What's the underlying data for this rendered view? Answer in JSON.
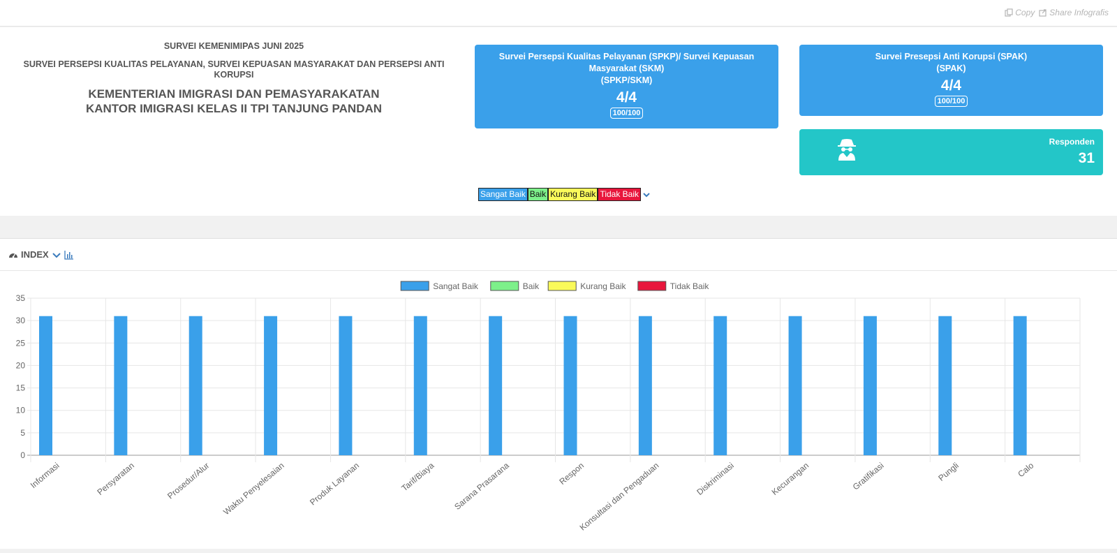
{
  "topbar": {
    "copy_label": "Copy",
    "share_label": "Share Infografis"
  },
  "header": {
    "title1": "SURVEI KEMENIMIPAS JUNI 2025",
    "title2": "SURVEI PERSEPSI KUALITAS PELAYANAN, SURVEI KEPUASAN MASYARAKAT DAN PERSEPSI ANTI KORUPSI",
    "title3_line1": "KEMENTERIAN IMIGRASI DAN PEMASYARAKATAN",
    "title3_line2": "KANTOR IMIGRASI KELAS II TPI TANJUNG PANDAN"
  },
  "cards": {
    "skm": {
      "title_line1": "Survei Persepsi Kualitas Pelayanan (SPKP)/ Survei Kepuasan",
      "title_line2": "Masyarakat (SKM)",
      "title_line3": "(SPKP/SKM)",
      "score": "4/4",
      "pill": "100/100"
    },
    "spak": {
      "title_line1": "Survei Presepsi Anti Korupsi (SPAK)",
      "title_line2": "(SPAK)",
      "score": "4/4",
      "pill": "100/100"
    },
    "responden": {
      "label": "Responden",
      "value": "31"
    }
  },
  "legend_chips": {
    "sangat_baik": "Sangat Baik",
    "baik": "Baik",
    "kurang_baik": "Kurang Baik",
    "tidak_baik": "Tidak Baik"
  },
  "panel": {
    "title": "INDEX"
  },
  "colors": {
    "sangat_baik": "#3aa0ea",
    "baik": "#7df08a",
    "kurang_baik": "#fafa5a",
    "tidak_baik": "#e8163c",
    "responden": "#23c6c8"
  },
  "chart_data": {
    "type": "bar",
    "title": "",
    "xlabel": "",
    "ylabel": "",
    "ylim": [
      0,
      35
    ],
    "yticks": [
      0,
      5,
      10,
      15,
      20,
      25,
      30,
      35
    ],
    "legend_position": "top",
    "grid": true,
    "categories": [
      "Informasi",
      "Persyaratan",
      "Prosedur/Alur",
      "Waktu Penyelesaian",
      "Produk Layanan",
      "Tarif/Biaya",
      "Sarana Prasarana",
      "Respon",
      "Konsultasi dan Pengaduan",
      "Diskriminasi",
      "Kecurangan",
      "Gratifikasi",
      "Pungli",
      "Calo"
    ],
    "series": [
      {
        "name": "Sangat Baik",
        "color": "#3aa0ea",
        "values": [
          31,
          31,
          31,
          31,
          31,
          31,
          31,
          31,
          31,
          31,
          31,
          31,
          31,
          31
        ]
      },
      {
        "name": "Baik",
        "color": "#7df08a",
        "values": [
          0,
          0,
          0,
          0,
          0,
          0,
          0,
          0,
          0,
          0,
          0,
          0,
          0,
          0
        ]
      },
      {
        "name": "Kurang Baik",
        "color": "#fafa5a",
        "values": [
          0,
          0,
          0,
          0,
          0,
          0,
          0,
          0,
          0,
          0,
          0,
          0,
          0,
          0
        ]
      },
      {
        "name": "Tidak Baik",
        "color": "#e8163c",
        "values": [
          0,
          0,
          0,
          0,
          0,
          0,
          0,
          0,
          0,
          0,
          0,
          0,
          0,
          0
        ]
      }
    ]
  }
}
